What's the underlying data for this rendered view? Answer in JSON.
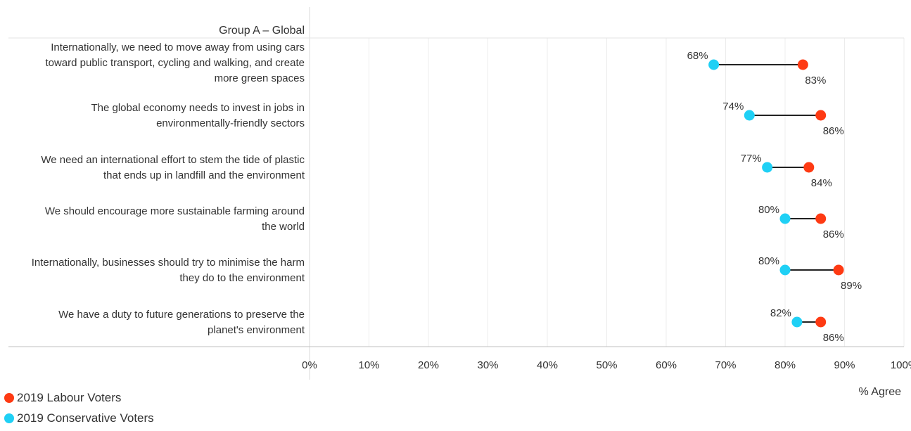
{
  "chart_data": {
    "type": "dumbbell",
    "title": "Group A – Global",
    "xlabel": "% Agree",
    "xlim": [
      0,
      100
    ],
    "tick_labels": [
      "0%",
      "10%",
      "20%",
      "30%",
      "40%",
      "50%",
      "60%",
      "70%",
      "80%",
      "90%",
      "100%"
    ],
    "categories": [
      [
        "Internationally, we need to move away from using cars",
        "toward public transport, cycling and walking, and create",
        "more green spaces"
      ],
      [
        "The global economy needs to invest in jobs in",
        "environmentally-friendly sectors"
      ],
      [
        "We need an international effort to stem the tide of plastic",
        "that ends up in landfill and the environment"
      ],
      [
        "We should encourage more sustainable farming around",
        "the world"
      ],
      [
        "Internationally, businesses should try to minimise the harm",
        "they do to the environment"
      ],
      [
        "We have a duty to future generations to preserve the",
        "planet's environment"
      ]
    ],
    "series": [
      {
        "name": "2019 Labour Voters",
        "color": "#fe3a13",
        "values": [
          83,
          86,
          84,
          86,
          89,
          86
        ],
        "labels": [
          "83%",
          "86%",
          "84%",
          "86%",
          "89%",
          "86%"
        ]
      },
      {
        "name": "2019 Conservative Voters",
        "color": "#1fd0f5",
        "values": [
          68,
          74,
          77,
          80,
          80,
          82
        ],
        "labels": [
          "68%",
          "74%",
          "77%",
          "80%",
          "80%",
          "82%"
        ]
      }
    ],
    "grid": true,
    "legend_position": "bottom-left"
  }
}
